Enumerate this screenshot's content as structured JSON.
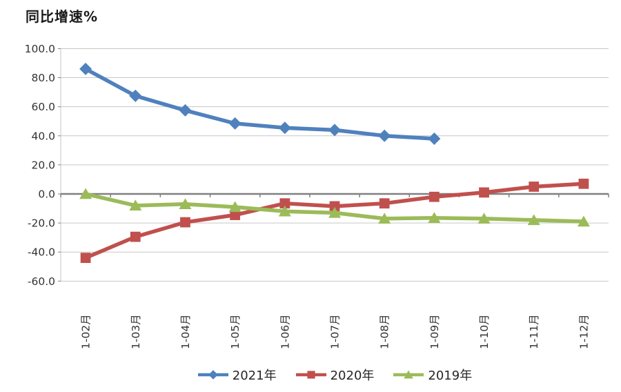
{
  "chart": {
    "title": "同比增速%"
  },
  "chart_data": {
    "type": "line",
    "title": "同比增速%",
    "ylabel": "同比增速%",
    "categories": [
      "1-02月",
      "1-03月",
      "1-04月",
      "1-05月",
      "1-06月",
      "1-07月",
      "1-08月",
      "1-09月",
      "1-10月",
      "1-11月",
      "1-12月"
    ],
    "series": [
      {
        "name": "2021年",
        "marker": "diamond",
        "color": "#4F81BD",
        "values": [
          86,
          67.5,
          57.5,
          48.5,
          45.5,
          44,
          40,
          38
        ]
      },
      {
        "name": "2020年",
        "marker": "square",
        "color": "#C0504D",
        "values": [
          -44,
          -29.5,
          -19.5,
          -14.5,
          -6.5,
          -8.5,
          -6.5,
          -2,
          1,
          5,
          7
        ]
      },
      {
        "name": "2019年",
        "marker": "triangle",
        "color": "#9BBB59",
        "values": [
          0,
          -8,
          -7,
          -9,
          -12,
          -13,
          -17,
          -16.5,
          -17,
          -18,
          -19
        ]
      }
    ],
    "y_ticks": [
      "100.0",
      "80.0",
      "60.0",
      "40.0",
      "20.0",
      "0.0",
      "-20.0",
      "-40.0",
      "-60.0"
    ],
    "ylim": [
      -60,
      100
    ],
    "y_step": 20,
    "grid": true,
    "legend_position": "bottom",
    "colors": {
      "axis_line": "#808080",
      "gridline": "#c6c6c6",
      "tick_text": "#333333",
      "title_text": "#1a1a1a",
      "background": "#ffffff"
    }
  }
}
